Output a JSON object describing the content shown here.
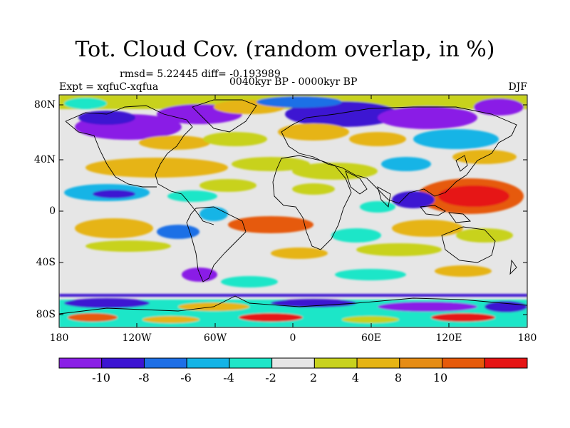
{
  "title": "Tot. Cloud Cov. (random overlap, in %)",
  "stats": "rmsd= 5.22445 diff= -0.193989",
  "period": "0040kyr BP - 0000kyr BP",
  "experiment": "Expt = xqfuC-xqfua",
  "season": "DJF",
  "lat_labels": [
    "80N",
    "40N",
    "0",
    "40S",
    "80S"
  ],
  "lon_labels": [
    "180",
    "120W",
    "60W",
    "0",
    "60E",
    "120E",
    "180"
  ],
  "colorbar": {
    "labels": [
      "-10",
      "-8",
      "-6",
      "-4",
      "-2",
      "2",
      "4",
      "8",
      "10"
    ],
    "colors": [
      "#8a1fe6",
      "#3c14d2",
      "#1e6fe6",
      "#14b4e6",
      "#1ee6c8",
      "#e6e6e6",
      "#c8d21e",
      "#e6b414",
      "#e68c14",
      "#e65a0a",
      "#e61414"
    ]
  },
  "features": {
    "pacific_warm_pool": "positive anomaly (>10)",
    "high_latitude_bands": "mixed strong positive/negative anomalies"
  }
}
